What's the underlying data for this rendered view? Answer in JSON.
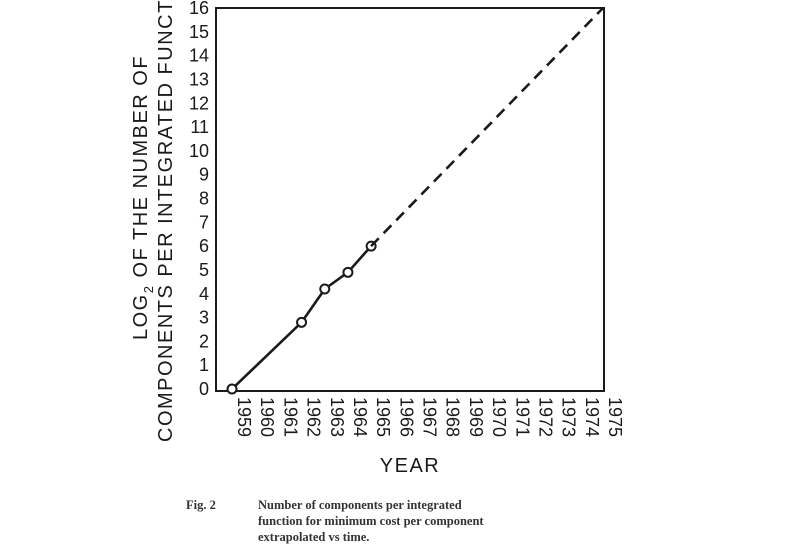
{
  "chart_data": {
    "type": "line",
    "ylabel_line1": "LOG",
    "ylabel_sub": "2",
    "ylabel_line1_rest": " OF THE NUMBER OF",
    "ylabel_line2": "COMPONENTS PER INTEGRATED FUNCTION",
    "xlabel": "YEAR",
    "x_ticks": [
      "1959",
      "1960",
      "1961",
      "1962",
      "1963",
      "1964",
      "1965",
      "1966",
      "1967",
      "1968",
      "1969",
      "1970",
      "1971",
      "1972",
      "1973",
      "1974",
      "1975"
    ],
    "y_ticks": [
      "0",
      "1",
      "2",
      "3",
      "4",
      "5",
      "6",
      "7",
      "8",
      "9",
      "10",
      "11",
      "12",
      "13",
      "14",
      "15",
      "16"
    ],
    "xlim": [
      1959,
      1975
    ],
    "ylim": [
      0,
      16
    ],
    "grid": false,
    "series": [
      {
        "style": "solid-with-markers",
        "points": [
          [
            1959,
            0
          ],
          [
            1962,
            2.8
          ],
          [
            1963,
            4.2
          ],
          [
            1964,
            4.9
          ],
          [
            1965,
            6
          ]
        ]
      },
      {
        "style": "dashed",
        "points": [
          [
            1965,
            6
          ],
          [
            1975,
            16
          ]
        ]
      }
    ]
  },
  "caption": {
    "label": "Fig. 2",
    "lines": [
      "Number of components per integrated",
      "function for minimum cost per component",
      "extrapolated vs time."
    ]
  }
}
